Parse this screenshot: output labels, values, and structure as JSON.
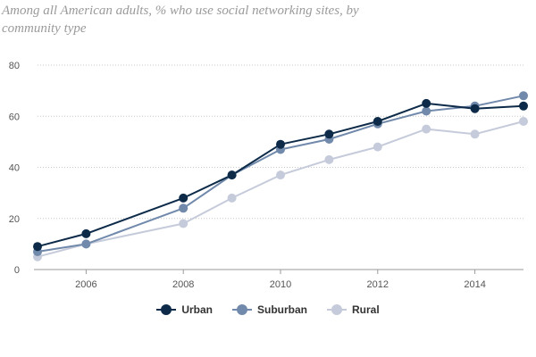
{
  "chart_data": {
    "type": "line",
    "title": "Among all American adults, % who use social networking sites, by community type",
    "xlabel": "",
    "ylabel": "",
    "x": [
      2005,
      2006,
      2008,
      2009,
      2010,
      2011,
      2012,
      2013,
      2014,
      2015
    ],
    "xlim": [
      2005,
      2015
    ],
    "ylim": [
      0,
      80
    ],
    "x_ticks": [
      2006,
      2008,
      2010,
      2012,
      2014
    ],
    "y_ticks": [
      0,
      20,
      40,
      60,
      80
    ],
    "grid": "horizontal dotted",
    "legend_position": "bottom-center",
    "series": [
      {
        "name": "Urban",
        "color": "#0d2b49",
        "values": [
          9,
          14,
          28,
          37,
          49,
          53,
          58,
          65,
          63,
          64
        ]
      },
      {
        "name": "Suburban",
        "color": "#7189ab",
        "values": [
          7,
          10,
          24,
          37,
          47,
          51,
          57,
          62,
          64,
          68
        ]
      },
      {
        "name": "Rural",
        "color": "#c5cbda",
        "values": [
          5,
          10,
          18,
          28,
          37,
          43,
          48,
          55,
          53,
          58
        ]
      }
    ]
  }
}
